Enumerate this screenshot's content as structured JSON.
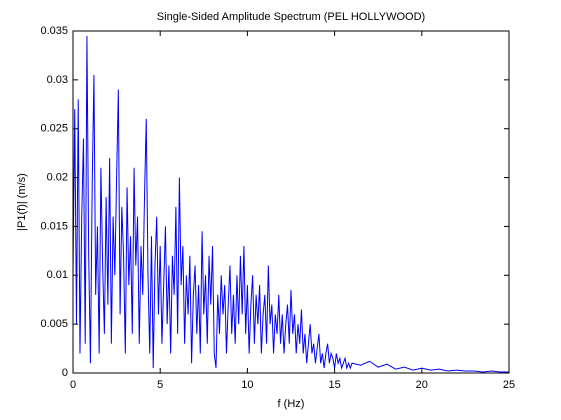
{
  "chart_data": {
    "type": "line",
    "title": "Single-Sided Amplitude Spectrum (PEL HOLLYWOOD)",
    "xlabel": "f (Hz)",
    "ylabel": "|P1(f)| (m/s)",
    "color": "#0000ff",
    "xlim": [
      0,
      25
    ],
    "xticks": [
      0,
      5,
      10,
      15,
      20,
      25
    ],
    "ylim": [
      0,
      0.035
    ],
    "yticks": [
      0,
      0.005,
      0.01,
      0.015,
      0.02,
      0.025,
      0.03,
      0.035
    ],
    "x": [
      0,
      0.1,
      0.2,
      0.3,
      0.4,
      0.5,
      0.6,
      0.7,
      0.8,
      0.9,
      1,
      1.1,
      1.2,
      1.3,
      1.4,
      1.5,
      1.6,
      1.7,
      1.8,
      1.9,
      2,
      2.1,
      2.2,
      2.3,
      2.4,
      2.5,
      2.6,
      2.7,
      2.8,
      2.9,
      3,
      3.1,
      3.2,
      3.3,
      3.4,
      3.5,
      3.6,
      3.7,
      3.8,
      3.9,
      4,
      4.1,
      4.2,
      4.3,
      4.4,
      4.5,
      4.6,
      4.7,
      4.8,
      4.9,
      5,
      5.1,
      5.2,
      5.3,
      5.4,
      5.5,
      5.6,
      5.7,
      5.8,
      5.9,
      6,
      6.1,
      6.2,
      6.3,
      6.4,
      6.5,
      6.6,
      6.7,
      6.8,
      6.9,
      7,
      7.1,
      7.2,
      7.3,
      7.4,
      7.5,
      7.6,
      7.7,
      7.8,
      7.9,
      8,
      8.1,
      8.2,
      8.3,
      8.4,
      8.5,
      8.6,
      8.7,
      8.8,
      8.9,
      9,
      9.1,
      9.2,
      9.3,
      9.4,
      9.5,
      9.6,
      9.7,
      9.8,
      9.9,
      10,
      10.1,
      10.2,
      10.3,
      10.4,
      10.5,
      10.6,
      10.7,
      10.8,
      10.9,
      11,
      11.1,
      11.2,
      11.3,
      11.4,
      11.5,
      11.6,
      11.7,
      11.8,
      11.9,
      12,
      12.1,
      12.2,
      12.3,
      12.4,
      12.5,
      12.6,
      12.7,
      12.8,
      12.9,
      13,
      13.1,
      13.2,
      13.3,
      13.4,
      13.5,
      13.6,
      13.7,
      13.8,
      13.9,
      14,
      14.1,
      14.2,
      14.3,
      14.4,
      14.5,
      14.6,
      14.7,
      14.8,
      14.9,
      15,
      15.1,
      15.2,
      15.3,
      15.4,
      15.5,
      15.6,
      15.7,
      15.8,
      15.9,
      16,
      16.5,
      17,
      17.5,
      18,
      18.5,
      19,
      19.5,
      20,
      20.5,
      21,
      21.5,
      22,
      22.5,
      23,
      23.5,
      24,
      24.5,
      25
    ],
    "values": [
      0.01,
      0.027,
      0.005,
      0.028,
      0.002,
      0.016,
      0.024,
      0.003,
      0.0345,
      0.012,
      0.001,
      0.019,
      0.0305,
      0.008,
      0.015,
      0.002,
      0.021,
      0.011,
      0.004,
      0.018,
      0.007,
      0.022,
      0.003,
      0.016,
      0.01,
      0.02,
      0.029,
      0.006,
      0.017,
      0.012,
      0.002,
      0.019,
      0.009,
      0.014,
      0.004,
      0.021,
      0.011,
      0.016,
      0.003,
      0.013,
      0.008,
      0.018,
      0.026,
      0.01,
      0.002,
      0.014,
      0.0005,
      0.011,
      0.016,
      0.006,
      0.013,
      0.003,
      0.009,
      0.015,
      0.005,
      0.011,
      0.002,
      0.012,
      0.008,
      0.017,
      0.004,
      0.02,
      0.009,
      0.013,
      0.003,
      0.01,
      0.006,
      0.012,
      0.001,
      0.008,
      0.011,
      0.004,
      0.009,
      0.002,
      0.0145,
      0.006,
      0.01,
      0.003,
      0.012,
      0.007,
      0.013,
      0.002,
      0.0005,
      0.008,
      0.004,
      0.01,
      0.006,
      0.009,
      0.002,
      0.007,
      0.011,
      0.004,
      0.008,
      0.003,
      0.01,
      0.005,
      0.012,
      0.006,
      0.013,
      0.004,
      0.009,
      0.002,
      0.007,
      0.01,
      0.003,
      0.008,
      0.005,
      0.009,
      0.002,
      0.006,
      0.008,
      0.003,
      0.011,
      0.005,
      0.007,
      0.002,
      0.006,
      0.004,
      0.008,
      0.003,
      0.006,
      0.002,
      0.005,
      0.007,
      0.003,
      0.0085,
      0.004,
      0.006,
      0.002,
      0.005,
      0.003,
      0.0065,
      0.002,
      0.004,
      0.001,
      0.003,
      0.005,
      0.002,
      0.003,
      0.001,
      0.0025,
      0.004,
      0.001,
      0.002,
      0.0005,
      0.002,
      0.003,
      0.001,
      0.002,
      0.0015,
      0.0005,
      0.002,
      0.001,
      0.0015,
      0.0005,
      0.001,
      0.0015,
      0.0005,
      0.001,
      0.0005,
      0.001,
      0.0008,
      0.0012,
      0.0006,
      0.0009,
      0.0004,
      0.0006,
      0.0003,
      0.0005,
      0.0003,
      0.0004,
      0.0002,
      0.0003,
      0.0002,
      0.0002,
      0.0001,
      0.0002,
      0.0001,
      0.0001
    ]
  }
}
